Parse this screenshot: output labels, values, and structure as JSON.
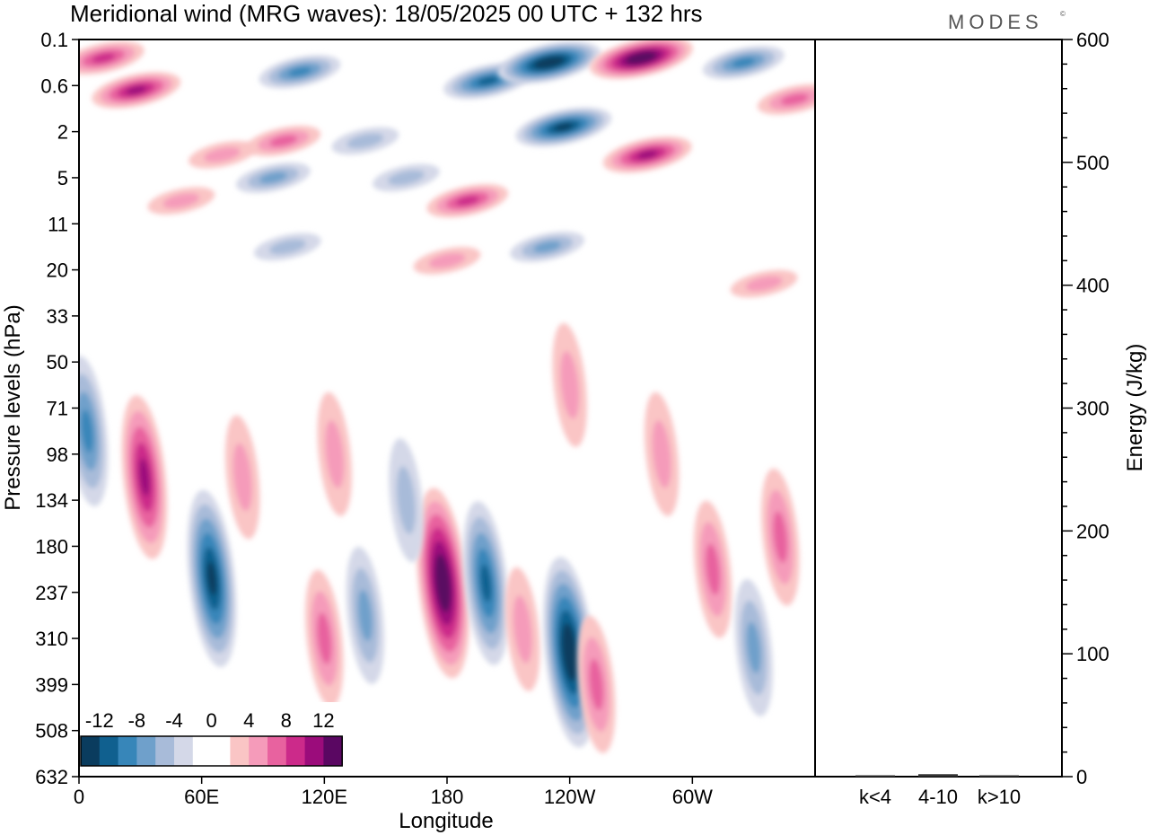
{
  "title": "Meridional wind (MRG waves):  18/05/2025  00 UTC  + 132 hrs",
  "brand": "MODES",
  "brand_mark": "©",
  "chart_data": [
    {
      "type": "heatmap",
      "title": "Meridional wind (MRG waves):  18/05/2025  00 UTC  + 132 hrs",
      "xlabel": "Longitude",
      "ylabel": "Pressure levels (hPa)",
      "x_ticks": [
        {
          "lon": 0,
          "label": "0"
        },
        {
          "lon": 60,
          "label": "60E"
        },
        {
          "lon": 120,
          "label": "120E"
        },
        {
          "lon": 180,
          "label": "180"
        },
        {
          "lon": 240,
          "label": "120W"
        },
        {
          "lon": 300,
          "label": "60W"
        }
      ],
      "x_range": [
        0,
        360
      ],
      "y_levels": [
        "0.1",
        "0.6",
        "2",
        "5",
        "11",
        "20",
        "33",
        "50",
        "71",
        "98",
        "134",
        "180",
        "237",
        "310",
        "399",
        "508",
        "632"
      ],
      "colorbar": {
        "labels": [
          "-12",
          "-8",
          "-4",
          "0",
          "4",
          "8",
          "12"
        ],
        "colors": [
          "#0a3c5e",
          "#10608f",
          "#3786b9",
          "#6fa0cb",
          "#a8bbd9",
          "#d4d8e8",
          "#ffffff",
          "#ffffff",
          "#fac5c5",
          "#f59bba",
          "#e8629f",
          "#cc2a8a",
          "#9b0c7b",
          "#5a0762"
        ]
      },
      "features": [
        {
          "lon": 12,
          "level": 0.4,
          "sign": 1,
          "level_value": 3
        },
        {
          "lon": 28,
          "level": 1.1,
          "sign": 1,
          "level_value": 4
        },
        {
          "lon": 70,
          "level": 2.5,
          "sign": 1,
          "level_value": 1
        },
        {
          "lon": 100,
          "level": 2.2,
          "sign": 1,
          "level_value": 2
        },
        {
          "lon": 50,
          "level": 3.5,
          "sign": 1,
          "level_value": 1
        },
        {
          "lon": 102,
          "level": 4.5,
          "sign": -1,
          "level_value": 1
        },
        {
          "lon": 108,
          "level": 0.7,
          "sign": -1,
          "level_value": 3
        },
        {
          "lon": 140,
          "level": 2.2,
          "sign": -1,
          "level_value": 1
        },
        {
          "lon": 160,
          "level": 3.0,
          "sign": -1,
          "level_value": 1
        },
        {
          "lon": 95,
          "level": 3.0,
          "sign": -1,
          "level_value": 2
        },
        {
          "lon": 200,
          "level": 0.9,
          "sign": -1,
          "level_value": 4
        },
        {
          "lon": 230,
          "level": 0.5,
          "sign": -1,
          "level_value": 6
        },
        {
          "lon": 237,
          "level": 1.9,
          "sign": -1,
          "level_value": 5
        },
        {
          "lon": 275,
          "level": 0.4,
          "sign": 1,
          "level_value": 6
        },
        {
          "lon": 278,
          "level": 2.5,
          "sign": 1,
          "level_value": 4
        },
        {
          "lon": 325,
          "level": 0.5,
          "sign": -1,
          "level_value": 3
        },
        {
          "lon": 350,
          "level": 1.3,
          "sign": 1,
          "level_value": 2
        },
        {
          "lon": 190,
          "level": 3.5,
          "sign": 1,
          "level_value": 3
        },
        {
          "lon": 229,
          "level": 4.5,
          "sign": -1,
          "level_value": 2
        },
        {
          "lon": 180,
          "level": 4.8,
          "sign": 1,
          "level_value": 1
        },
        {
          "lon": 335,
          "level": 5.3,
          "sign": 1,
          "level_value": 1
        },
        {
          "lon": 32,
          "level": 9.5,
          "sign": 1,
          "level_value": 4
        },
        {
          "lon": 4,
          "level": 8.5,
          "sign": -1,
          "level_value": 3
        },
        {
          "lon": 65,
          "level": 11.7,
          "sign": -1,
          "level_value": 5
        },
        {
          "lon": 80,
          "level": 9.5,
          "sign": 1,
          "level_value": 1
        },
        {
          "lon": 120,
          "level": 13.0,
          "sign": 1,
          "level_value": 2
        },
        {
          "lon": 140,
          "level": 12.5,
          "sign": -1,
          "level_value": 2
        },
        {
          "lon": 178,
          "level": 11.8,
          "sign": 1,
          "level_value": 6
        },
        {
          "lon": 199,
          "level": 11.8,
          "sign": -1,
          "level_value": 4
        },
        {
          "lon": 217,
          "level": 12.8,
          "sign": 1,
          "level_value": 1
        },
        {
          "lon": 240,
          "level": 13.3,
          "sign": -1,
          "level_value": 6
        },
        {
          "lon": 253,
          "level": 14.0,
          "sign": 1,
          "level_value": 2
        },
        {
          "lon": 310,
          "level": 11.5,
          "sign": 1,
          "level_value": 2
        },
        {
          "lon": 330,
          "level": 13.2,
          "sign": -1,
          "level_value": 2
        },
        {
          "lon": 343,
          "level": 10.8,
          "sign": 1,
          "level_value": 2
        },
        {
          "lon": 160,
          "level": 10.0,
          "sign": -1,
          "level_value": 1
        },
        {
          "lon": 285,
          "level": 9.0,
          "sign": 1,
          "level_value": 1
        },
        {
          "lon": 240,
          "level": 7.5,
          "sign": 1,
          "level_value": 1
        },
        {
          "lon": 125,
          "level": 9.0,
          "sign": 1,
          "level_value": 1
        }
      ]
    },
    {
      "type": "bar",
      "categories": [
        "k<4",
        "4-10",
        "k>10"
      ],
      "values": [
        0.5,
        2,
        0.5
      ],
      "ylabel": "Energy (J/kg)",
      "ylim": [
        0,
        600
      ],
      "y_ticks": [
        0,
        100,
        200,
        300,
        400,
        500,
        600
      ]
    }
  ]
}
